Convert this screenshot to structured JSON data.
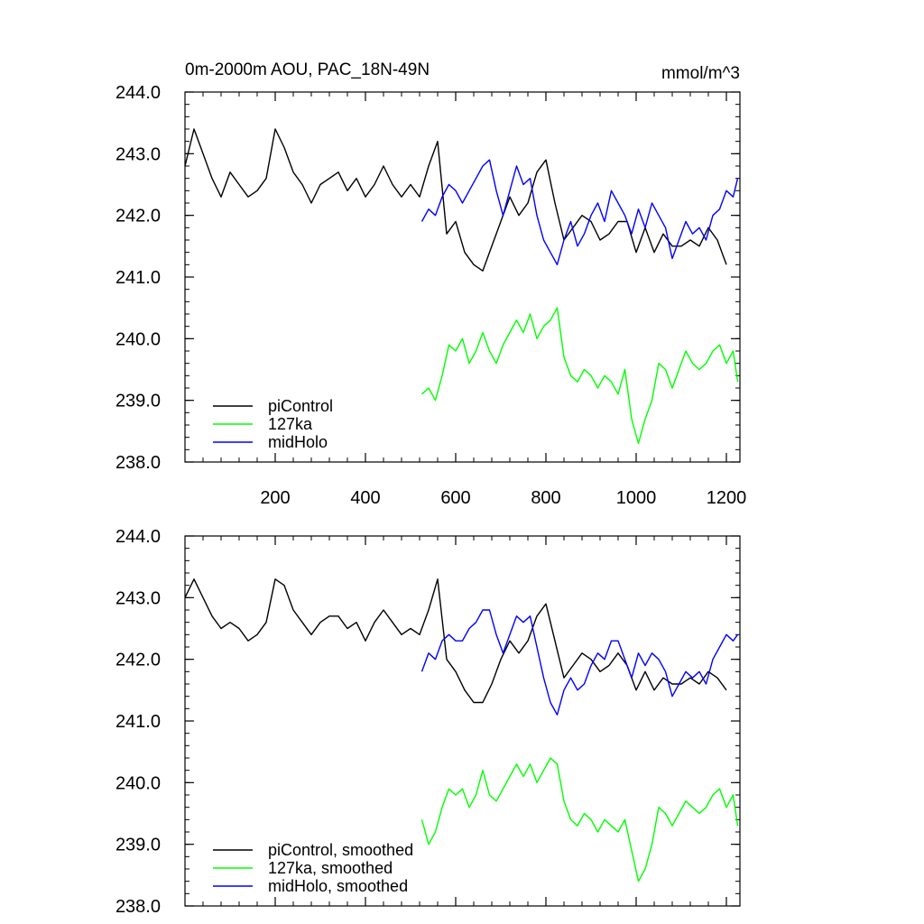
{
  "figure": {
    "title": "0m-2000m AOU, PAC_18N-49N",
    "units": "mmol/m^3"
  },
  "colors": {
    "piControl": "#000000",
    "127ka": "#00ff00",
    "midHolo": "#0000ff"
  },
  "chart_data": [
    {
      "type": "line",
      "panel": "top",
      "title": "0m-2000m AOU, PAC_18N-49N",
      "units_label": "mmol/m^3",
      "xlabel": "",
      "ylabel": "",
      "xlim": [
        0,
        1230
      ],
      "ylim": [
        238.0,
        244.0
      ],
      "xticks": [
        200,
        400,
        600,
        800,
        1000,
        1200
      ],
      "xtick_labels": [
        "200",
        "400",
        "600",
        "800",
        "1000",
        "1200"
      ],
      "yticks": [
        238.0,
        239.0,
        240.0,
        241.0,
        242.0,
        243.0,
        244.0
      ],
      "ytick_labels": [
        "238.0",
        "239.0",
        "240.0",
        "241.0",
        "242.0",
        "243.0",
        "244.0"
      ],
      "legend_position": "bottom-left",
      "series": [
        {
          "name": "piControl",
          "color_key": "piControl",
          "x": [
            0,
            20,
            40,
            60,
            80,
            100,
            120,
            140,
            160,
            180,
            200,
            220,
            240,
            260,
            280,
            300,
            320,
            340,
            360,
            380,
            400,
            420,
            440,
            460,
            480,
            500,
            520,
            540,
            560,
            580,
            600,
            620,
            640,
            660,
            680,
            700,
            720,
            740,
            760,
            780,
            800,
            820,
            840,
            860,
            880,
            900,
            920,
            940,
            960,
            980,
            1000,
            1020,
            1040,
            1060,
            1080,
            1100,
            1120,
            1140,
            1160,
            1180,
            1200
          ],
          "y": [
            242.8,
            243.4,
            243.0,
            242.6,
            242.3,
            242.7,
            242.5,
            242.3,
            242.4,
            242.6,
            243.4,
            243.1,
            242.7,
            242.5,
            242.2,
            242.5,
            242.6,
            242.7,
            242.4,
            242.6,
            242.3,
            242.5,
            242.8,
            242.5,
            242.3,
            242.5,
            242.3,
            242.8,
            243.2,
            241.7,
            241.9,
            241.4,
            241.2,
            241.1,
            241.5,
            241.9,
            242.3,
            242.0,
            242.2,
            242.7,
            242.9,
            242.2,
            241.6,
            241.8,
            242.0,
            241.9,
            241.6,
            241.7,
            241.9,
            241.9,
            241.4,
            241.8,
            241.4,
            241.7,
            241.5,
            241.5,
            241.6,
            241.5,
            241.8,
            241.6,
            241.2
          ]
        },
        {
          "name": "127ka",
          "color_key": "127ka",
          "x": [
            525,
            540,
            555,
            570,
            585,
            600,
            615,
            630,
            645,
            660,
            675,
            690,
            705,
            720,
            735,
            750,
            765,
            780,
            795,
            810,
            825,
            840,
            855,
            870,
            885,
            900,
            915,
            930,
            945,
            960,
            975,
            990,
            1005,
            1020,
            1035,
            1050,
            1065,
            1080,
            1095,
            1110,
            1125,
            1140,
            1155,
            1170,
            1185,
            1200,
            1215,
            1225
          ],
          "y": [
            239.1,
            239.2,
            239.0,
            239.4,
            239.9,
            239.8,
            240.0,
            239.6,
            239.8,
            240.1,
            239.8,
            239.6,
            239.9,
            240.1,
            240.3,
            240.1,
            240.4,
            240.0,
            240.2,
            240.3,
            240.5,
            239.7,
            239.4,
            239.3,
            239.5,
            239.4,
            239.2,
            239.4,
            239.3,
            239.1,
            239.5,
            238.7,
            238.3,
            238.7,
            239.0,
            239.6,
            239.5,
            239.2,
            239.5,
            239.8,
            239.6,
            239.5,
            239.6,
            239.8,
            239.9,
            239.6,
            239.8,
            239.3
          ]
        },
        {
          "name": "midHolo",
          "color_key": "midHolo",
          "x": [
            525,
            540,
            555,
            570,
            585,
            600,
            615,
            630,
            645,
            660,
            675,
            690,
            705,
            720,
            735,
            750,
            765,
            780,
            795,
            810,
            825,
            840,
            855,
            870,
            885,
            900,
            915,
            930,
            945,
            960,
            975,
            990,
            1005,
            1020,
            1035,
            1050,
            1065,
            1080,
            1095,
            1110,
            1125,
            1140,
            1155,
            1170,
            1185,
            1200,
            1215,
            1225
          ],
          "y": [
            241.9,
            242.1,
            242.0,
            242.3,
            242.5,
            242.4,
            242.2,
            242.4,
            242.6,
            242.8,
            242.9,
            242.4,
            242.0,
            242.4,
            242.8,
            242.5,
            242.6,
            242.0,
            241.6,
            241.4,
            241.2,
            241.6,
            241.9,
            241.5,
            241.7,
            242.0,
            242.2,
            241.9,
            242.4,
            242.2,
            242.0,
            241.7,
            242.1,
            241.8,
            242.2,
            242.0,
            241.8,
            241.3,
            241.6,
            241.9,
            241.7,
            241.8,
            241.6,
            242.0,
            242.1,
            242.4,
            242.3,
            242.6
          ]
        }
      ]
    },
    {
      "type": "line",
      "panel": "bottom",
      "title": "",
      "xlabel": "",
      "ylabel": "",
      "xlim": [
        0,
        1230
      ],
      "ylim": [
        238.0,
        244.0
      ],
      "xticks": [
        200,
        400,
        600,
        800,
        1000,
        1200
      ],
      "xtick_labels": [],
      "yticks": [
        238.0,
        239.0,
        240.0,
        241.0,
        242.0,
        243.0,
        244.0
      ],
      "ytick_labels": [
        "238.0",
        "239.0",
        "240.0",
        "241.0",
        "242.0",
        "243.0",
        "244.0"
      ],
      "legend_position": "bottom-left",
      "series": [
        {
          "name": "piControl, smoothed",
          "color_key": "piControl",
          "x": [
            0,
            20,
            40,
            60,
            80,
            100,
            120,
            140,
            160,
            180,
            200,
            220,
            240,
            260,
            280,
            300,
            320,
            340,
            360,
            380,
            400,
            420,
            440,
            460,
            480,
            500,
            520,
            540,
            560,
            580,
            600,
            620,
            640,
            660,
            680,
            700,
            720,
            740,
            760,
            780,
            800,
            820,
            840,
            860,
            880,
            900,
            920,
            940,
            960,
            980,
            1000,
            1020,
            1040,
            1060,
            1080,
            1100,
            1120,
            1140,
            1160,
            1180,
            1200
          ],
          "y": [
            243.0,
            243.3,
            243.0,
            242.7,
            242.5,
            242.6,
            242.5,
            242.3,
            242.4,
            242.6,
            243.3,
            243.2,
            242.8,
            242.6,
            242.4,
            242.6,
            242.7,
            242.7,
            242.5,
            242.6,
            242.3,
            242.6,
            242.8,
            242.6,
            242.4,
            242.5,
            242.4,
            242.8,
            243.3,
            242.0,
            241.8,
            241.5,
            241.3,
            241.3,
            241.6,
            242.0,
            242.3,
            242.1,
            242.3,
            242.7,
            242.9,
            242.3,
            241.7,
            241.9,
            242.1,
            242.0,
            241.8,
            241.9,
            242.1,
            241.9,
            241.5,
            241.8,
            241.5,
            241.7,
            241.6,
            241.6,
            241.7,
            241.6,
            241.8,
            241.7,
            241.5
          ]
        },
        {
          "name": "127ka, smoothed",
          "color_key": "127ka",
          "x": [
            525,
            540,
            555,
            570,
            585,
            600,
            615,
            630,
            645,
            660,
            675,
            690,
            705,
            720,
            735,
            750,
            765,
            780,
            795,
            810,
            825,
            840,
            855,
            870,
            885,
            900,
            915,
            930,
            945,
            960,
            975,
            990,
            1005,
            1020,
            1035,
            1050,
            1065,
            1080,
            1095,
            1110,
            1125,
            1140,
            1155,
            1170,
            1185,
            1200,
            1215,
            1225
          ],
          "y": [
            239.4,
            239.0,
            239.2,
            239.6,
            239.9,
            239.8,
            239.9,
            239.6,
            239.8,
            240.2,
            239.8,
            239.7,
            239.9,
            240.1,
            240.3,
            240.1,
            240.3,
            240.0,
            240.2,
            240.4,
            240.3,
            239.7,
            239.4,
            239.3,
            239.5,
            239.4,
            239.2,
            239.4,
            239.3,
            239.2,
            239.4,
            238.9,
            238.4,
            238.6,
            239.0,
            239.6,
            239.5,
            239.3,
            239.5,
            239.7,
            239.6,
            239.5,
            239.6,
            239.8,
            239.9,
            239.6,
            239.8,
            239.3
          ]
        },
        {
          "name": "midHolo, smoothed",
          "color_key": "midHolo",
          "x": [
            525,
            540,
            555,
            570,
            585,
            600,
            615,
            630,
            645,
            660,
            675,
            690,
            705,
            720,
            735,
            750,
            765,
            780,
            795,
            810,
            825,
            840,
            855,
            870,
            885,
            900,
            915,
            930,
            945,
            960,
            975,
            990,
            1005,
            1020,
            1035,
            1050,
            1065,
            1080,
            1095,
            1110,
            1125,
            1140,
            1155,
            1170,
            1185,
            1200,
            1215,
            1225
          ],
          "y": [
            241.8,
            242.1,
            242.0,
            242.3,
            242.4,
            242.3,
            242.3,
            242.5,
            242.6,
            242.8,
            242.8,
            242.4,
            242.1,
            242.4,
            242.7,
            242.6,
            242.7,
            242.2,
            241.7,
            241.3,
            241.1,
            241.5,
            241.7,
            241.5,
            241.6,
            241.9,
            242.1,
            242.0,
            242.3,
            242.3,
            242.0,
            241.7,
            242.1,
            241.9,
            242.1,
            242.0,
            241.8,
            241.4,
            241.6,
            241.8,
            241.7,
            241.8,
            241.6,
            242.0,
            242.2,
            242.4,
            242.3,
            242.4
          ]
        }
      ]
    }
  ]
}
